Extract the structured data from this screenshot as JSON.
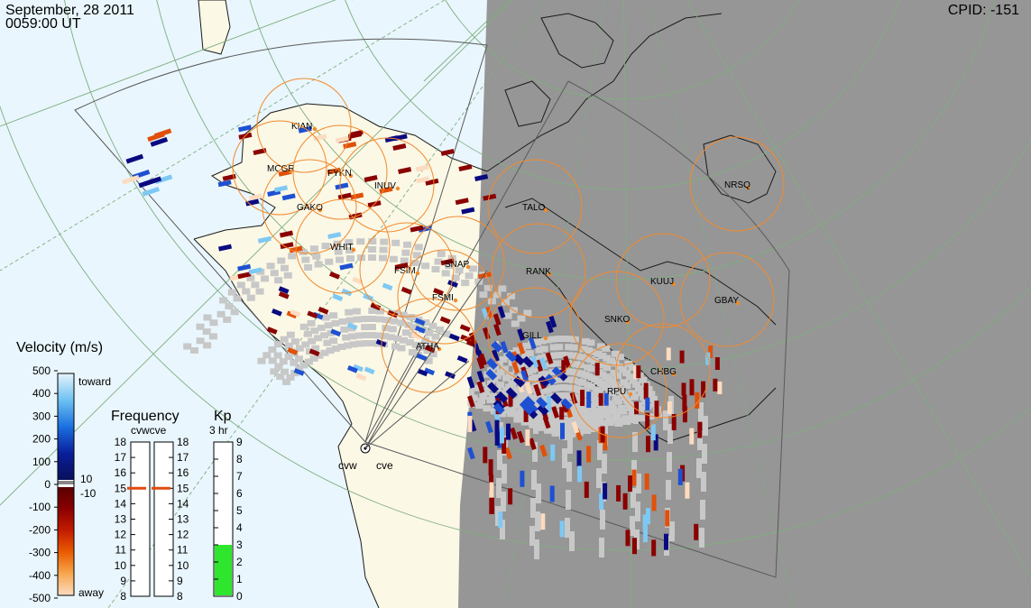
{
  "header": {
    "date": "September, 28 2011",
    "time": "0059:00 UT",
    "cpid_label": "CPID:",
    "cpid_value": "-151"
  },
  "colors": {
    "ocean": "#e9f6fd",
    "land": "#fbf8e6",
    "night": "#969696",
    "grid": "#7fae7f",
    "radar_circle": "#f28a2e",
    "station_dot": "#f08a28",
    "ground_scatter": "#c8c8c8",
    "toward_dark": "#0a0a80",
    "toward_mid": "#1e50d2",
    "toward_light": "#7fc8f4",
    "away_dark": "#8a0000",
    "away_mid": "#e0500a",
    "away_light": "#fcdcc0",
    "kp_fill": "#2ee62e",
    "frequency_marker": "#e04a10"
  },
  "stations": [
    {
      "name": "KIAN"
    },
    {
      "name": "MCGR"
    },
    {
      "name": "FYKN"
    },
    {
      "name": "INUV"
    },
    {
      "name": "GAKO"
    },
    {
      "name": "TALO"
    },
    {
      "name": "WHIT"
    },
    {
      "name": "FSIM"
    },
    {
      "name": "SNAP"
    },
    {
      "name": "RANK"
    },
    {
      "name": "FSMI"
    },
    {
      "name": "KUUJ"
    },
    {
      "name": "GBAY"
    },
    {
      "name": "SNKO"
    },
    {
      "name": "GILL"
    },
    {
      "name": "ATHA"
    },
    {
      "name": "CHBG"
    },
    {
      "name": "RPU"
    },
    {
      "name": "NRSQ"
    }
  ],
  "radars": {
    "west": "cvw",
    "east": "cve"
  },
  "velocity_legend": {
    "title": "Velocity (m/s)",
    "ticks": [
      "500",
      "400",
      "300",
      "200",
      "100",
      "0",
      "-100",
      "-200",
      "-300",
      "-400",
      "-500"
    ],
    "toward_label": "toward",
    "away_label": "away",
    "plus_threshold": "10",
    "minus_threshold": "-10"
  },
  "frequency_panel": {
    "title": "Frequency",
    "subtitle": "cvwcve",
    "ticks": [
      "18",
      "17",
      "16",
      "15",
      "14",
      "13",
      "12",
      "11",
      "10",
      "9",
      "8"
    ],
    "cvw_mhz": 15,
    "cve_mhz": 15
  },
  "kp_panel": {
    "title": "Kp",
    "subtitle": "3 hr",
    "ticks": [
      "9",
      "8",
      "7",
      "6",
      "5",
      "4",
      "3",
      "2",
      "1",
      "0"
    ],
    "kp_value": 3
  }
}
